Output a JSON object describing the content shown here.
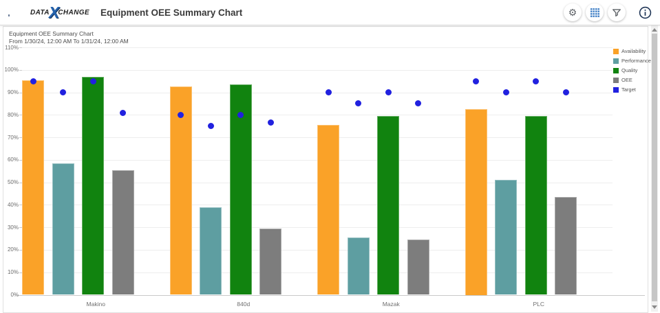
{
  "header": {
    "logo": {
      "part1": "DATA",
      "x": "X",
      "part2": "CHANGE",
      "x_color": "#2563ae"
    },
    "title": "Equipment OEE Summary Chart",
    "icons": {
      "menu": "hamburger",
      "gear_glyph": "⚙",
      "grid": "blue-grid-squares",
      "filter": "funnel",
      "info": "circled-i",
      "grid_color": "#4a86c8"
    }
  },
  "panel": {
    "title": "Equipment OEE Summary Chart",
    "subtitle": "From 1/30/24, 12:00 AM To 1/31/24, 12:00 AM"
  },
  "chart_data": {
    "type": "bar",
    "title": "Equipment OEE Summary Chart",
    "subtitle": "From 1/30/24, 12:00 AM To 1/31/24, 12:00 AM",
    "categories": [
      "Makino",
      "840d",
      "Mazak",
      "PLC"
    ],
    "series": [
      {
        "name": "Availability",
        "type": "bar",
        "color": "#FAA228",
        "values": [
          95.5,
          92.5,
          75.5,
          82.5
        ]
      },
      {
        "name": "Performance",
        "type": "bar",
        "color": "#5E9EA1",
        "values": [
          58.5,
          39,
          25.5,
          51
        ]
      },
      {
        "name": "Quality",
        "type": "bar",
        "color": "#11830F",
        "values": [
          97,
          93.5,
          79.5,
          79.5
        ]
      },
      {
        "name": "OEE",
        "type": "bar",
        "color": "#7D7D7D",
        "values": [
          55.5,
          29.5,
          24.5,
          43.5
        ]
      },
      {
        "name": "Target",
        "type": "scatter",
        "color": "#2121DF",
        "values_by_series": {
          "Availability": [
            95,
            80,
            90,
            95
          ],
          "Performance": [
            90,
            75,
            85,
            90
          ],
          "Quality": [
            95,
            80,
            90,
            95
          ],
          "OEE": [
            81,
            76.5,
            85,
            90
          ]
        }
      }
    ],
    "xlabel": "",
    "ylabel": "",
    "ylim": [
      0,
      110
    ],
    "ytick_step": 10,
    "ytick_suffix": "%",
    "grid": "horizontal-only",
    "legend_position": "right"
  }
}
